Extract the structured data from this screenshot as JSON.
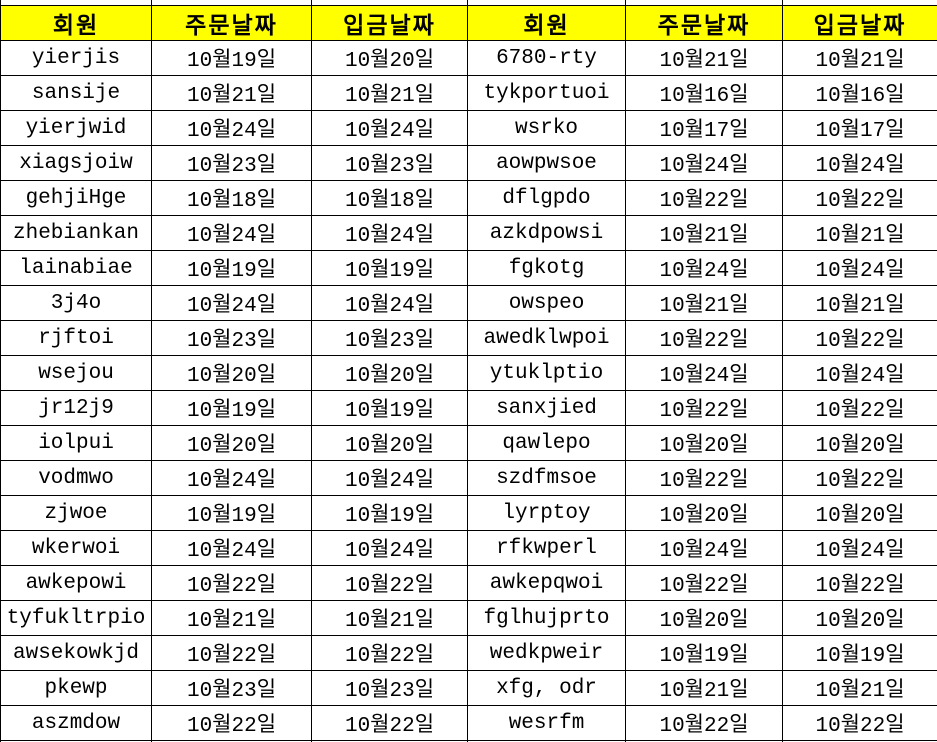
{
  "table": {
    "header_bg_color": "#FFFF00",
    "header_text_color": "#000000",
    "grid_color": "#000000",
    "columns": [
      {
        "key": "member-1",
        "label": "회원"
      },
      {
        "key": "order-date-1",
        "label": "주문날짜"
      },
      {
        "key": "deposit-date-1",
        "label": "입금날짜"
      },
      {
        "key": "member-2",
        "label": "회원"
      },
      {
        "key": "order-date-2",
        "label": "주문날짜"
      },
      {
        "key": "deposit-date-2",
        "label": "입금날짜"
      }
    ],
    "rows": [
      [
        "yierjis",
        "10월19일",
        "10월20일",
        "6780-rty",
        "10월21일",
        "10월21일"
      ],
      [
        "sansije",
        "10월21일",
        "10월21일",
        "tykportuoi",
        "10월16일",
        "10월16일"
      ],
      [
        "yierjwid",
        "10월24일",
        "10월24일",
        "wsrko",
        "10월17일",
        "10월17일"
      ],
      [
        "xiagsjoiw",
        "10월23일",
        "10월23일",
        "aowpwsoe",
        "10월24일",
        "10월24일"
      ],
      [
        "gehjiHge",
        "10월18일",
        "10월18일",
        "dflgpdo",
        "10월22일",
        "10월22일"
      ],
      [
        "zhebiankan",
        "10월24일",
        "10월24일",
        "azkdpowsi",
        "10월21일",
        "10월21일"
      ],
      [
        "lainabiae",
        "10월19일",
        "10월19일",
        "fgkotg",
        "10월24일",
        "10월24일"
      ],
      [
        "3j4o",
        "10월24일",
        "10월24일",
        "owspeo",
        "10월21일",
        "10월21일"
      ],
      [
        "rjftoi",
        "10월23일",
        "10월23일",
        "awedklwpoi",
        "10월22일",
        "10월22일"
      ],
      [
        "wsejou",
        "10월20일",
        "10월20일",
        "ytuklptio",
        "10월24일",
        "10월24일"
      ],
      [
        "jr12j9",
        "10월19일",
        "10월19일",
        "sanxjied",
        "10월22일",
        "10월22일"
      ],
      [
        "iolpui",
        "10월20일",
        "10월20일",
        "qawlepo",
        "10월20일",
        "10월20일"
      ],
      [
        "vodmwo",
        "10월24일",
        "10월24일",
        "szdfmsoe",
        "10월22일",
        "10월22일"
      ],
      [
        "zjwoe",
        "10월19일",
        "10월19일",
        "lyrptoy",
        "10월20일",
        "10월20일"
      ],
      [
        "wkerwoi",
        "10월24일",
        "10월24일",
        "rfkwperl",
        "10월24일",
        "10월24일"
      ],
      [
        "awkepowi",
        "10월22일",
        "10월22일",
        "awkepqwoi",
        "10월22일",
        "10월22일"
      ],
      [
        "tyfukltrpio",
        "10월21일",
        "10월21일",
        "fglhujprto",
        "10월20일",
        "10월20일"
      ],
      [
        "awsekowkjd",
        "10월22일",
        "10월22일",
        "wedkpweir",
        "10월19일",
        "10월19일"
      ],
      [
        "pkewp",
        "10월23일",
        "10월23일",
        "xfg, odr",
        "10월21일",
        "10월21일"
      ],
      [
        "aszmdow",
        "10월22일",
        "10월22일",
        "wesrfm",
        "10월22일",
        "10월22일"
      ]
    ]
  }
}
